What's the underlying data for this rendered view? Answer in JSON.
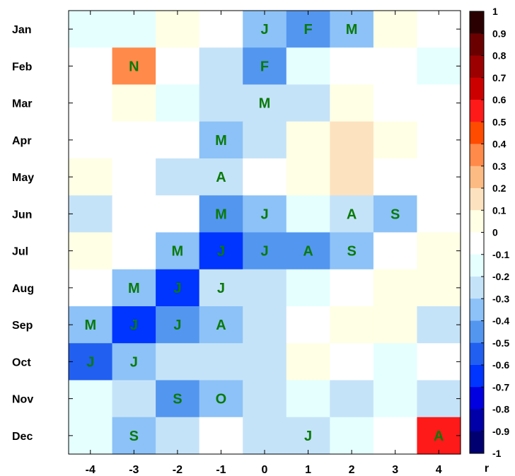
{
  "chart_data": {
    "type": "heatmap",
    "title": "",
    "xlabel": "",
    "ylabel": "",
    "colorbar_label": "r",
    "colorbar_range": [
      -1,
      1
    ],
    "colorbar_ticks": [
      "1",
      "0.9",
      "0.8",
      "0.7",
      "0.6",
      "0.5",
      "0.4",
      "0.3",
      "0.2",
      "0.1",
      "0",
      "-0.1",
      "-0.2",
      "-0.3",
      "-0.4",
      "-0.5",
      "-0.6",
      "-0.7",
      "-0.8",
      "-0.9",
      "-1"
    ],
    "colorbar_colors": [
      "#2a0000",
      "#6a0000",
      "#9c0000",
      "#cd0000",
      "#ff1a1a",
      "#ff4b00",
      "#ff8a4a",
      "#fdbb84",
      "#fde2bf",
      "#ffffe5",
      "#ffffff",
      "#e5ffff",
      "#c5e3f8",
      "#8cc2f7",
      "#5396f0",
      "#215ff0",
      "#0034ff",
      "#0000e0",
      "#0000a8",
      "#000070"
    ],
    "x": [
      "-4",
      "-3",
      "-2",
      "-1",
      "0",
      "1",
      "2",
      "3",
      "4"
    ],
    "y": [
      "Jan",
      "Feb",
      "Mar",
      "Apr",
      "May",
      "Jun",
      "Jul",
      "Aug",
      "Sep",
      "Oct",
      "Nov",
      "Dec"
    ],
    "values": [
      [
        -0.15,
        -0.15,
        0.05,
        0.0,
        -0.35,
        -0.45,
        -0.3,
        0.05,
        0.0
      ],
      [
        0.0,
        0.35,
        0.0,
        -0.25,
        -0.45,
        -0.15,
        0.0,
        0.0,
        -0.15
      ],
      [
        0.0,
        0.05,
        -0.15,
        -0.25,
        -0.25,
        -0.25,
        0.05,
        0.0,
        0.0
      ],
      [
        0.0,
        0.0,
        0.0,
        -0.35,
        -0.25,
        0.05,
        0.15,
        0.05,
        0.0
      ],
      [
        0.05,
        0.0,
        -0.25,
        -0.25,
        0.0,
        0.05,
        0.15,
        0.0,
        0.0
      ],
      [
        -0.25,
        0.0,
        0.0,
        -0.45,
        -0.35,
        -0.15,
        -0.25,
        -0.35,
        0.0
      ],
      [
        0.05,
        0.0,
        -0.35,
        -0.65,
        -0.45,
        -0.45,
        -0.35,
        0.0,
        0.05
      ],
      [
        0.0,
        -0.35,
        -0.65,
        -0.25,
        -0.25,
        -0.15,
        0.0,
        0.05,
        0.05
      ],
      [
        -0.35,
        -0.65,
        -0.45,
        -0.35,
        -0.25,
        0.0,
        0.05,
        0.05,
        -0.25
      ],
      [
        -0.55,
        -0.35,
        -0.25,
        -0.25,
        -0.25,
        0.05,
        0.0,
        -0.15,
        0.0
      ],
      [
        -0.15,
        -0.25,
        -0.45,
        -0.35,
        -0.25,
        -0.15,
        -0.25,
        -0.15,
        -0.25
      ],
      [
        -0.15,
        -0.35,
        -0.25,
        0.0,
        -0.25,
        -0.25,
        -0.15,
        0.0,
        0.55
      ]
    ],
    "annotations": [
      [
        "",
        "",
        "",
        "",
        "J",
        "F",
        "M",
        "",
        ""
      ],
      [
        "",
        "N",
        "",
        "",
        "F",
        "",
        "",
        "",
        ""
      ],
      [
        "",
        "",
        "",
        "",
        "M",
        "",
        "",
        "",
        ""
      ],
      [
        "",
        "",
        "",
        "M",
        "",
        "",
        "",
        "",
        ""
      ],
      [
        "",
        "",
        "",
        "A",
        "",
        "",
        "",
        "",
        ""
      ],
      [
        "",
        "",
        "",
        "M",
        "J",
        "",
        "A",
        "S",
        ""
      ],
      [
        "",
        "",
        "M",
        "J",
        "J",
        "A",
        "S",
        "",
        ""
      ],
      [
        "",
        "M",
        "J",
        "J",
        "",
        "",
        "",
        "",
        ""
      ],
      [
        "M",
        "J",
        "J",
        "A",
        "",
        "",
        "",
        "",
        ""
      ],
      [
        "J",
        "J",
        "",
        "",
        "",
        "",
        "",
        "",
        ""
      ],
      [
        "",
        "",
        "S",
        "O",
        "",
        "",
        "",
        "",
        ""
      ],
      [
        "",
        "S",
        "",
        "",
        "",
        "J",
        "",
        "",
        "A"
      ]
    ],
    "annotation_color": "#0a7a0a",
    "grid": false,
    "legend": "colorbar-right"
  }
}
